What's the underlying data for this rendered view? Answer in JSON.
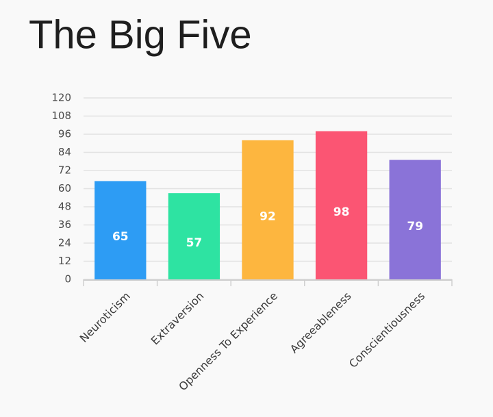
{
  "chart_data": {
    "type": "bar",
    "title": "The Big Five",
    "categories": [
      "Neuroticism",
      "Extraversion",
      "Openness To Experience",
      "Agreeableness",
      "Conscientiousness"
    ],
    "values": [
      65,
      57,
      92,
      98,
      79
    ],
    "colors": [
      "#2d9cf4",
      "#2ee3a2",
      "#fdb63f",
      "#fb5573",
      "#8a73d8"
    ],
    "ylim": [
      0,
      120
    ],
    "yticks": [
      0,
      12,
      24,
      36,
      48,
      60,
      72,
      84,
      96,
      108,
      120
    ],
    "grid": true,
    "data_labels": true
  }
}
